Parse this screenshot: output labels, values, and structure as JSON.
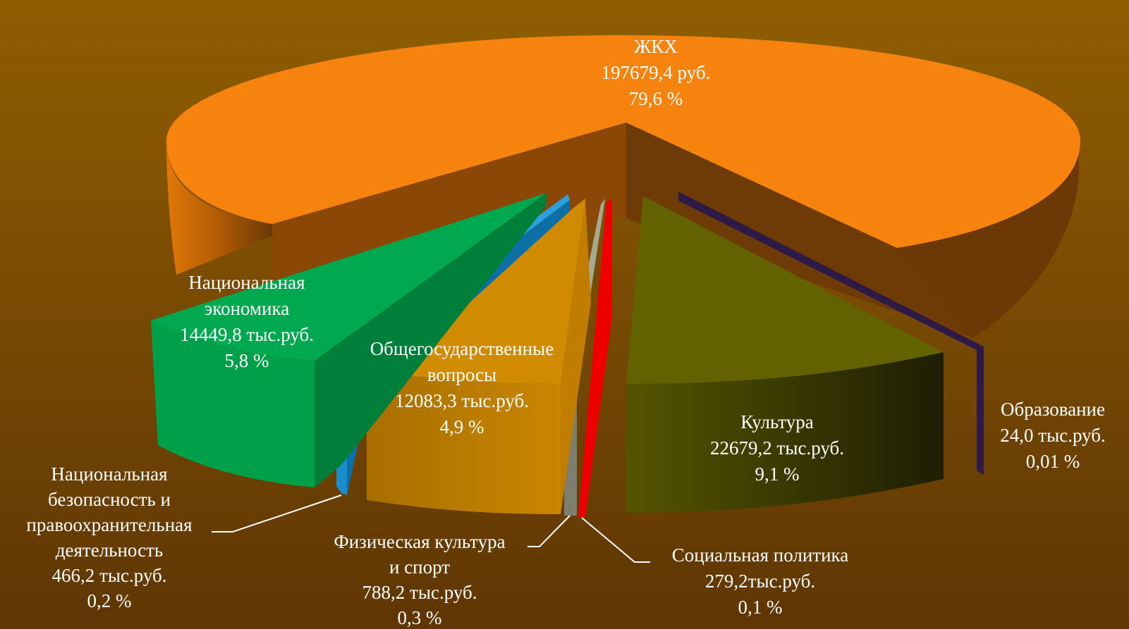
{
  "chart_data": {
    "type": "pie",
    "variant": "3d-exploded",
    "title": "",
    "slices": [
      {
        "name": "ЖКХ",
        "lines": [
          "ЖКХ"
        ],
        "value_label": "197679,4  руб.",
        "value": 197679.4,
        "percent_label": "79,6 %",
        "percent": 79.6,
        "color": "#f5830d",
        "side_color": "#8a4a05"
      },
      {
        "name": "Образование",
        "lines": [
          "Образование"
        ],
        "value_label": "24,0 тыс.руб.",
        "value": 24.0,
        "percent_label": "0,01 %",
        "percent": 0.01,
        "color": "#2e1a47",
        "side_color": "#1f1133"
      },
      {
        "name": "Культура",
        "lines": [
          "Культура"
        ],
        "value_label": "22679,2  тыс.руб.",
        "value": 22679.2,
        "percent_label": "9,1 %",
        "percent": 9.1,
        "color": "#626200",
        "side_color": "#2a2a02"
      },
      {
        "name": "Социальная политика",
        "lines": [
          "Социальная политика"
        ],
        "value_label": "279,2тыс.руб.",
        "value": 279.2,
        "percent_label": "0,1 %",
        "percent": 0.1,
        "color": "#ee0000",
        "side_color": "#b30000"
      },
      {
        "name": "Физическая культура и спорт",
        "lines": [
          "Физическая культура",
          "и спорт"
        ],
        "value_label": "788,2  тыс.руб.",
        "value": 788.2,
        "percent_label": "0,3 %",
        "percent": 0.3,
        "color": "#a8a890",
        "side_color": "#7e7e6c"
      },
      {
        "name": "Общегосударственные вопросы",
        "lines": [
          "Общегосударственные",
          "вопросы"
        ],
        "value_label": "12083,3  тыс.руб.",
        "value": 12083.3,
        "percent_label": "4,9 %",
        "percent": 4.9,
        "color": "#d18b00",
        "side_color": "#a86f00"
      },
      {
        "name": "Национальная безопасность и правоохранительная деятельность",
        "lines": [
          "Национальная",
          "безопасность и",
          "правоохранительная",
          "деятельность"
        ],
        "value_label": "466,2 тыс.руб.",
        "value": 466.2,
        "percent_label": "0,2 %",
        "percent": 0.2,
        "color": "#1a8ccc",
        "side_color": "#0c6fa6"
      },
      {
        "name": "Национальная экономика",
        "lines": [
          "Национальная",
          "экономика"
        ],
        "value_label": "14449,8  тыс.руб.",
        "value": 14449.8,
        "percent_label": "5,8 %",
        "percent": 5.8,
        "color": "#00a84f",
        "side_color": "#007f3b"
      }
    ]
  }
}
